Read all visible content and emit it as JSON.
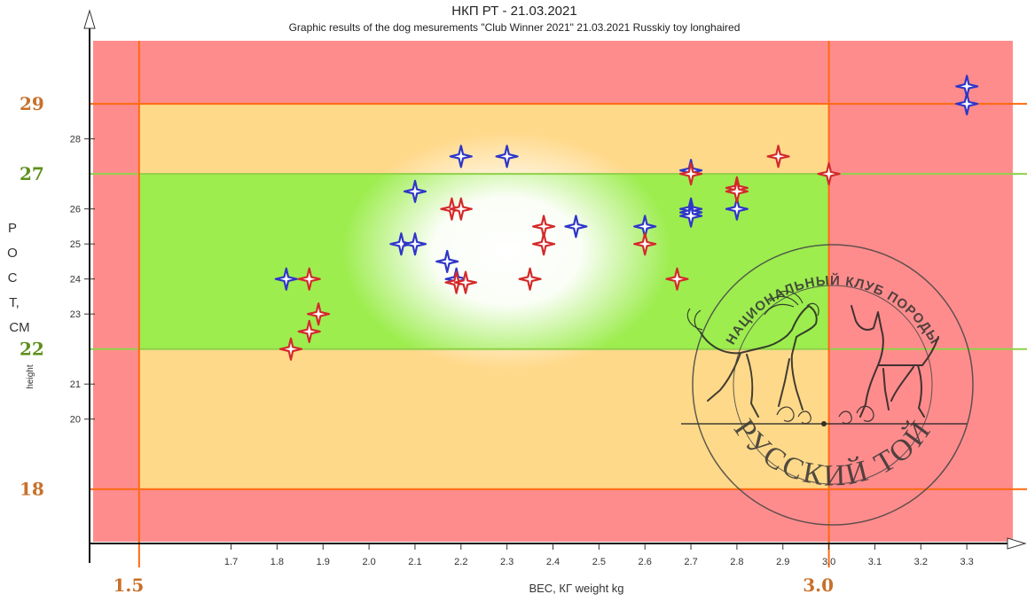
{
  "chart_data": {
    "type": "scatter",
    "title": "НКП РТ - 21.03.2021",
    "subtitle": "Graphic results of the dog mesurements \"Club Winner 2021\" 21.03.2021 Russkiy toy longhaired",
    "xlabel": "ВЕС, КГ weight kg",
    "ylabel_lines": [
      "Р",
      "О",
      "С",
      "Т,",
      "СМ"
    ],
    "ylabel_small": "height",
    "xlim": [
      1.4,
      3.4
    ],
    "ylim": [
      16.5,
      30.8
    ],
    "x_ticks": [
      "1.7",
      "1.8",
      "1.9",
      "2.0",
      "2.1",
      "2.2",
      "2.3",
      "2.4",
      "2.5",
      "2.6",
      "2.7",
      "2.8",
      "2.9",
      "3.0",
      "3.1",
      "3.2",
      "3.3"
    ],
    "y_ticks": [
      "20",
      "21",
      "23",
      "24",
      "25",
      "26",
      "28"
    ],
    "key_lines": {
      "y": [
        {
          "value": 29,
          "label": "29",
          "color": "#ff6a10",
          "label_color": "#c8702a"
        },
        {
          "value": 27,
          "label": "27",
          "color": "#8fd14a",
          "label_color": "#5e8f1c"
        },
        {
          "value": 22,
          "label": "22",
          "color": "#8fd14a",
          "label_color": "#5e8f1c"
        },
        {
          "value": 18,
          "label": "18",
          "color": "#ff6a10",
          "label_color": "#c8702a"
        }
      ],
      "x": [
        {
          "value": 1.5,
          "label": "1.5",
          "color": "#ff6a10",
          "label_color": "#c8702a"
        },
        {
          "value": 3.0,
          "label": "3.0",
          "color": "#ff6a10",
          "label_color": "#c8702a"
        }
      ]
    },
    "zones": {
      "outer_color": "#ff8c8c",
      "middle_color": "#ffd98a",
      "inner_color": "#9ded4f",
      "center_color": "#ffffff"
    },
    "series": [
      {
        "color": "#2f36c8",
        "points": [
          [
            1.82,
            24.0
          ],
          [
            2.07,
            25.0
          ],
          [
            2.1,
            25.0
          ],
          [
            2.1,
            26.5
          ],
          [
            2.17,
            24.5
          ],
          [
            2.19,
            24.0
          ],
          [
            2.2,
            27.5
          ],
          [
            2.3,
            27.5
          ],
          [
            2.45,
            25.5
          ],
          [
            2.6,
            25.5
          ],
          [
            2.7,
            27.1
          ],
          [
            2.7,
            26.0
          ],
          [
            2.7,
            25.9
          ],
          [
            2.7,
            25.8
          ],
          [
            2.8,
            26.0
          ],
          [
            3.3,
            29.5
          ],
          [
            3.3,
            29.0
          ]
        ]
      },
      {
        "color": "#d42a2a",
        "points": [
          [
            1.83,
            22.0
          ],
          [
            1.87,
            24.0
          ],
          [
            1.87,
            22.5
          ],
          [
            1.89,
            23.0
          ],
          [
            2.18,
            26.0
          ],
          [
            2.2,
            26.0
          ],
          [
            2.19,
            23.9
          ],
          [
            2.21,
            23.9
          ],
          [
            2.35,
            24.0
          ],
          [
            2.38,
            25.5
          ],
          [
            2.38,
            25.0
          ],
          [
            2.6,
            25.0
          ],
          [
            2.67,
            24.0
          ],
          [
            2.7,
            27.0
          ],
          [
            2.8,
            26.6
          ],
          [
            2.8,
            26.5
          ],
          [
            2.89,
            27.5
          ],
          [
            3.0,
            27.0
          ]
        ]
      }
    ]
  },
  "stamp": {
    "top_text": "НАЦИОНАЛЬНЫЙ КЛУБ ПОРОДЫ",
    "bottom_text": "РУССКИЙ ТОЙ"
  }
}
